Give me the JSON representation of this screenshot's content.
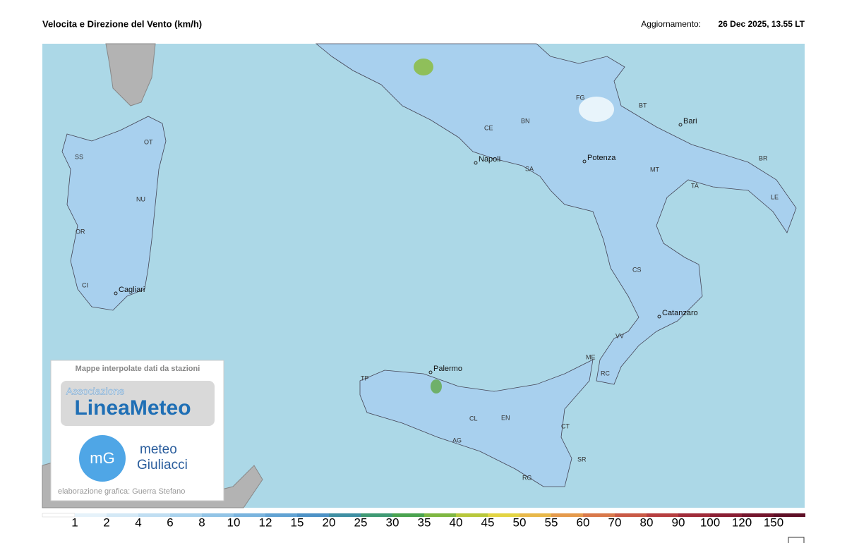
{
  "header": {
    "title": "Velocita e Direzione del Vento  (km/h)",
    "updated_label": "Aggiornamento:",
    "updated_value": "26 Dec 2025, 13.55 LT"
  },
  "cities": [
    {
      "label": "Napoli"
    },
    {
      "label": "Bari"
    },
    {
      "label": "Potenza"
    },
    {
      "label": "Catanzaro"
    },
    {
      "label": "Palermo"
    },
    {
      "label": "Cagliari"
    }
  ],
  "province_codes": [
    "SS",
    "OT",
    "NU",
    "OR",
    "CI",
    "FG",
    "BT",
    "BN",
    "CE",
    "SA",
    "MT",
    "TA",
    "BR",
    "LE",
    "CS",
    "VV",
    "RC",
    "ME",
    "TP",
    "CL",
    "EN",
    "AG",
    "CT",
    "SR",
    "RG"
  ],
  "logo_box": {
    "caption": "Mappe interpolate dati da stazioni",
    "assoc": "Associazione",
    "brand": "LineaMeteo",
    "mg": "mG",
    "meteo": "meteo",
    "giuliacci": "Giuliacci",
    "credit": "elaborazione grafica: Guerra Stefano"
  },
  "scale": {
    "values": [
      1,
      2,
      4,
      6,
      8,
      10,
      12,
      15,
      20,
      25,
      30,
      35,
      40,
      45,
      50,
      55,
      60,
      70,
      80,
      90,
      100,
      120,
      150
    ],
    "colors": [
      "#e6f2fa",
      "#d4e9f6",
      "#c0def2",
      "#a9d2ed",
      "#92c4e6",
      "#7ab4de",
      "#62a3d3",
      "#4d92c6",
      "#3f8fa3",
      "#3f9a74",
      "#4aa34f",
      "#7fb742",
      "#b8c83c",
      "#e3d443",
      "#e8b84a",
      "#e59a4c",
      "#d9794b",
      "#c95a46",
      "#b63f40",
      "#a02c3a",
      "#8a1f34",
      "#74162d",
      "#5e0f26"
    ]
  }
}
